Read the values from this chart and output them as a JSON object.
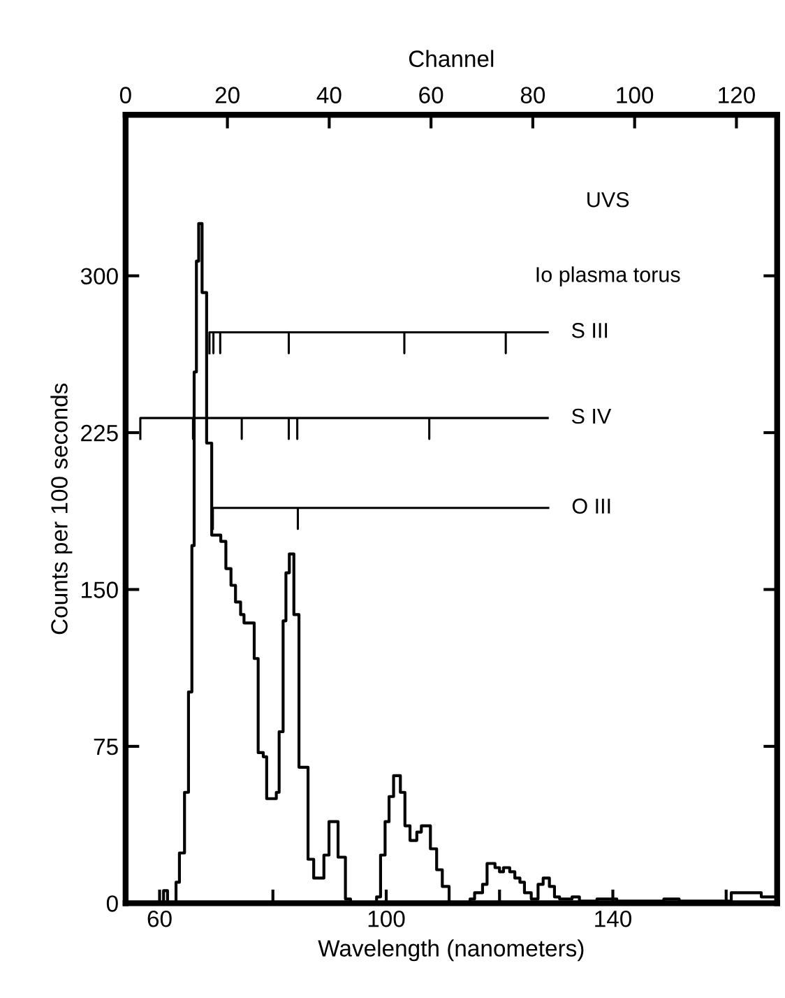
{
  "chart_data": {
    "type": "step",
    "xlabel": "Wavelength (nanometers)",
    "ylabel": "Counts per 100 seconds",
    "x2label": "Channel",
    "xlim": [
      54,
      169
    ],
    "xticks": [
      60,
      {
        "value": 80,
        "label": null
      },
      100,
      {
        "value": 120,
        "label": null
      },
      140,
      {
        "value": 160,
        "label": null
      }
    ],
    "x2lim": [
      0,
      128
    ],
    "x2ticks": [
      0,
      20,
      40,
      60,
      80,
      100,
      120
    ],
    "ylim": [
      0,
      377
    ],
    "yticks": [
      0,
      75,
      150,
      225,
      300
    ],
    "grid": false,
    "legend": false,
    "marker": "none",
    "line_style": "solid",
    "annotations": [
      "UVS",
      "Io plasma torus"
    ],
    "series": [
      {
        "color": "#000000",
        "x": [
          54,
          60.7,
          61.4,
          62.9,
          63.5,
          64.4,
          65.1,
          65.7,
          66.1,
          66.5,
          66.9,
          67.5,
          68.3,
          69.2,
          70.8,
          71.7,
          72.6,
          73.4,
          74.3,
          74.9,
          76.7,
          77.4,
          78.3,
          78.9,
          80.6,
          81.1,
          81.8,
          82.3,
          82.9,
          83.7,
          84.6,
          86.2,
          87.2,
          89.0,
          89.9,
          91.5,
          92.8,
          93.7,
          98.3,
          99.0,
          99.8,
          100.5,
          101.3,
          102.5,
          103.3,
          104.2,
          105.4,
          106.2,
          107.8,
          108.9,
          109.9,
          111.1,
          114.8,
          115.6,
          117.0,
          117.8,
          119.2,
          120.0,
          120.7,
          121.8,
          122.7,
          123.6,
          124.4,
          125.6,
          126.8,
          127.7,
          128.8,
          129.7,
          130.6,
          132.8,
          134.1,
          137.2,
          140.7,
          149.0,
          151.7,
          160.9,
          166.2,
          169
        ],
        "values": [
          0,
          6,
          0,
          10,
          24,
          53,
          101,
          171,
          254,
          307,
          325,
          292,
          220,
          176,
          173,
          160,
          152,
          144,
          138,
          134,
          117,
          72,
          70,
          50,
          53,
          82,
          135,
          158,
          167,
          138,
          65,
          21,
          12,
          23,
          39,
          22,
          2,
          0,
          3,
          23,
          39,
          51,
          61,
          53,
          37,
          30,
          34,
          37,
          26,
          16,
          8,
          0,
          2,
          5,
          9,
          19,
          17,
          15,
          17,
          15,
          12,
          10,
          5,
          2,
          9,
          12,
          8,
          3,
          2,
          3,
          1,
          2,
          1,
          2,
          1,
          5,
          3,
          3
        ]
      },
      {
        "type": "line",
        "name": "S III",
        "color": "#000000",
        "x": [
          68.8,
          68.8,
          69.5,
          69.5,
          69.5,
          70.7,
          70.7,
          70.7,
          82.8,
          82.8,
          82.8,
          103.2,
          103.2,
          103.2,
          121.1,
          121.1,
          121.1,
          128.5
        ],
        "values": [
          263,
          273,
          273,
          263,
          273,
          273,
          263,
          273,
          273,
          263,
          273,
          273,
          263,
          273,
          273,
          263,
          273,
          273
        ]
      },
      {
        "type": "line",
        "name": "S IV",
        "color": "#000000",
        "x": [
          56.6,
          56.6,
          65.9,
          65.9,
          65.9,
          74.5,
          74.5,
          74.5,
          82.8,
          82.8,
          82.8,
          84.3,
          84.3,
          84.3,
          107.6,
          107.6,
          107.6,
          128.5
        ],
        "values": [
          222,
          232,
          232,
          222,
          232,
          232,
          222,
          232,
          232,
          222,
          232,
          232,
          222,
          232,
          232,
          222,
          232,
          232
        ]
      },
      {
        "type": "line",
        "name": "O III",
        "color": "#000000",
        "x": [
          69.4,
          69.4,
          84.4,
          84.4,
          84.4,
          128.6
        ],
        "values": [
          179,
          189,
          189,
          179,
          189,
          189
        ]
      }
    ]
  }
}
